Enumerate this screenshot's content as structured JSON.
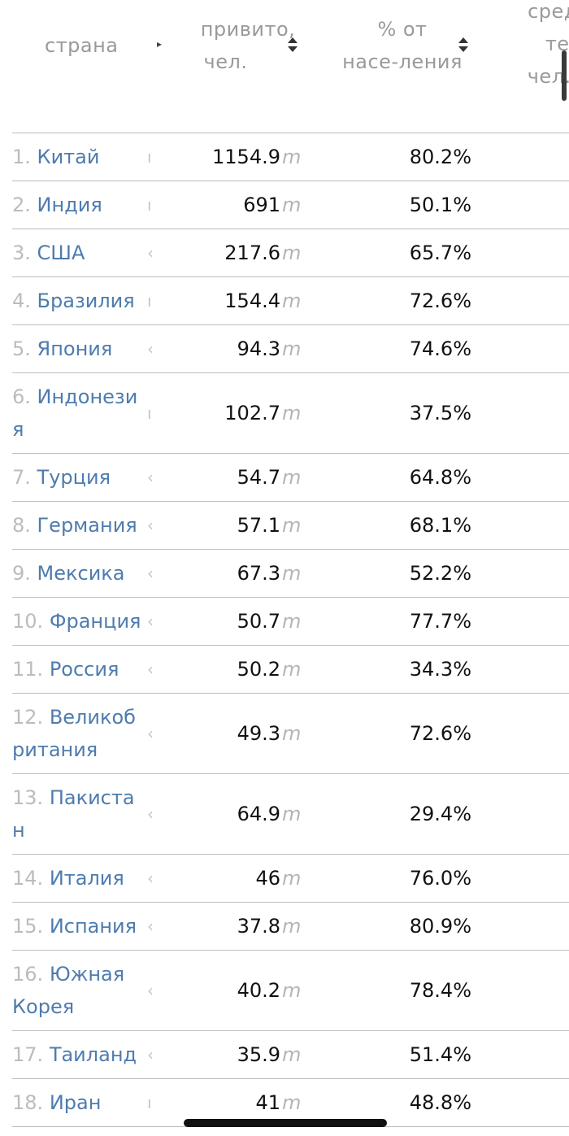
{
  "header": {
    "country": "страна",
    "vaccinated_line1": "привито,",
    "vaccinated_line2": "чел.",
    "percent_line1": "% от",
    "percent_line2": "насе-ления",
    "avg_line1": "сред",
    "avg_line2": "тем",
    "avg_line3": "чел./"
  },
  "unit": "m",
  "rows": [
    {
      "num": "1.",
      "country": "Китай",
      "country2": "",
      "trunc": "ı",
      "vaccinated": "1154.9",
      "percent": "80.2%"
    },
    {
      "num": "2.",
      "country": "Индия",
      "country2": "",
      "trunc": "ı",
      "vaccinated": "691",
      "percent": "50.1%"
    },
    {
      "num": "3.",
      "country": "США",
      "country2": "",
      "trunc": "‹",
      "vaccinated": "217.6",
      "percent": "65.7%"
    },
    {
      "num": "4.",
      "country": "Бразилия",
      "country2": "",
      "trunc": "ı",
      "vaccinated": "154.4",
      "percent": "72.6%"
    },
    {
      "num": "5.",
      "country": "Япония",
      "country2": "",
      "trunc": "‹",
      "vaccinated": "94.3",
      "percent": "74.6%"
    },
    {
      "num": "6.",
      "country": "Индонези",
      "country2": "я",
      "trunc": "ı",
      "vaccinated": "102.7",
      "percent": "37.5%"
    },
    {
      "num": "7.",
      "country": "Турция",
      "country2": "",
      "trunc": "‹",
      "vaccinated": "54.7",
      "percent": "64.8%"
    },
    {
      "num": "8.",
      "country": "Германия",
      "country2": "",
      "trunc": "‹",
      "vaccinated": "57.1",
      "percent": "68.1%"
    },
    {
      "num": "9.",
      "country": "Мексика",
      "country2": "",
      "trunc": "‹",
      "vaccinated": "67.3",
      "percent": "52.2%"
    },
    {
      "num": "10.",
      "country": "Франция",
      "country2": "",
      "trunc": "‹",
      "vaccinated": "50.7",
      "percent": "77.7%"
    },
    {
      "num": "11.",
      "country": "Россия",
      "country2": "",
      "trunc": "‹",
      "vaccinated": "50.2",
      "percent": "34.3%"
    },
    {
      "num": "12.",
      "country": "Великоб",
      "country2": "ритания",
      "trunc": "‹",
      "vaccinated": "49.3",
      "percent": "72.6%"
    },
    {
      "num": "13.",
      "country": "Пакиста",
      "country2": "н",
      "trunc": "‹",
      "vaccinated": "64.9",
      "percent": "29.4%"
    },
    {
      "num": "14.",
      "country": "Италия",
      "country2": "",
      "trunc": "‹",
      "vaccinated": "46",
      "percent": "76.0%"
    },
    {
      "num": "15.",
      "country": "Испания",
      "country2": "",
      "trunc": "‹",
      "vaccinated": "37.8",
      "percent": "80.9%"
    },
    {
      "num": "16.",
      "country": "Южная",
      "country2": "Корея",
      "trunc": "‹",
      "vaccinated": "40.2",
      "percent": "78.4%"
    },
    {
      "num": "17.",
      "country": "Таиланд",
      "country2": "",
      "trunc": "‹",
      "vaccinated": "35.9",
      "percent": "51.4%"
    },
    {
      "num": "18.",
      "country": "Иран",
      "country2": "",
      "trunc": "ı",
      "vaccinated": "41",
      "percent": "48.8%"
    }
  ]
}
